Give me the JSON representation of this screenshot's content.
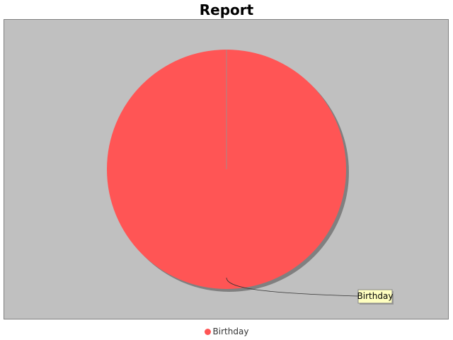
{
  "chart_data": {
    "type": "pie",
    "title": "Report",
    "categories": [
      "Birthday"
    ],
    "values": [
      1
    ],
    "colors": [
      "#ff5555"
    ],
    "slice_labels": [
      "Birthday"
    ],
    "legend": {
      "placement": "bottom",
      "entries": [
        "Birthday"
      ]
    },
    "plot_background": "#c0c0c0",
    "label_background": "#ffffc0",
    "shadow": true
  }
}
